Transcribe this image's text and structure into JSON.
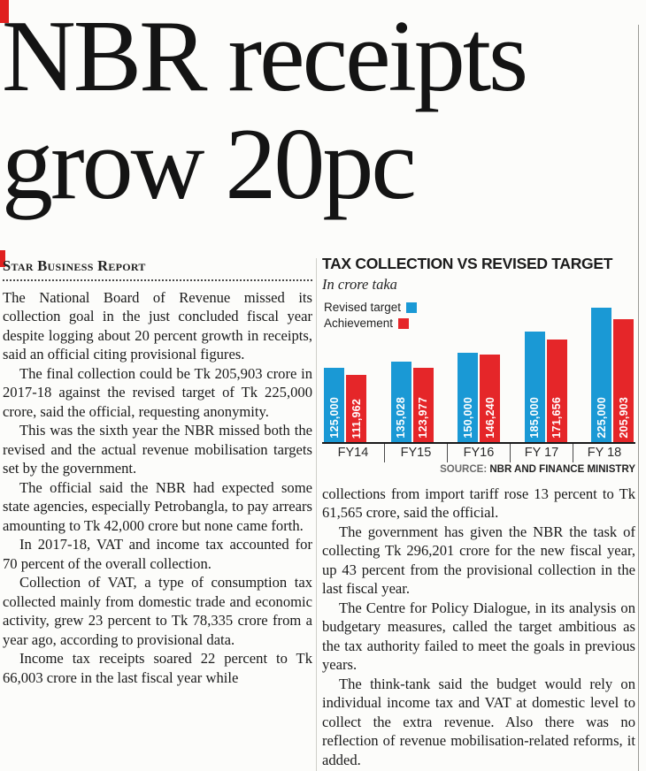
{
  "page": {
    "headline_line1": "NBR receipts",
    "headline_line2": "grow 20pc",
    "byline": "Star Business Report"
  },
  "article": {
    "left_paragraphs": [
      "The National Board of Revenue missed its collection goal in the just concluded fiscal year despite logging about 20 percent growth in receipts, said an official citing provisional figures.",
      "The final collection could be Tk 205,903 crore in 2017-18 against the revised target of Tk 225,000 crore, said the official, requesting anonymity.",
      "This was the sixth year the NBR missed both the revised and the actual revenue mobilisation targets set by the government.",
      "The official said the NBR had expected some state agencies, especially Petrobangla, to pay arrears amounting to Tk 42,000 crore but none came forth.",
      "In 2017-18, VAT and income tax accounted for 70 percent of the overall collection.",
      "Collection of VAT, a type of consumption tax collected mainly from domestic trade and economic activity, grew 23 percent to Tk 78,335 crore from a year ago, according to provisional data.",
      "Income tax receipts soared 22 percent to Tk 66,003 crore in the last fiscal year while"
    ],
    "right_paragraphs": [
      "collections from import tariff rose 13 percent to Tk 61,565 crore, said the official.",
      "The government has given the NBR the task of collecting Tk 296,201 crore for the new fiscal year, up 43 percent from the provisional collection in the last fiscal year.",
      "The Centre for Policy Dialogue, in its analysis on budgetary measures, called the target ambitious as the tax authority failed to meet the goals in previous years.",
      "The think-tank said the budget would rely on individual income tax and VAT at domestic level to collect the extra revenue. Also there was no reflection of revenue mobilisation-related reforms, it added."
    ]
  },
  "chart_data": {
    "type": "bar",
    "title": "TAX COLLECTION VS REVISED TARGET",
    "subtitle": "In crore taka",
    "categories": [
      "FY14",
      "FY15",
      "FY16",
      "FY 17",
      "FY 18"
    ],
    "series": [
      {
        "name": "Revised target",
        "color": "#1a99d5",
        "values": [
          125000,
          135028,
          150000,
          185000,
          225000
        ],
        "labels": [
          "125,000",
          "135,028",
          "150,000",
          "185,000",
          "225,000"
        ]
      },
      {
        "name": "Achievement",
        "color": "#e52629",
        "values": [
          111962,
          123977,
          146240,
          171656,
          205903
        ],
        "labels": [
          "111,962",
          "123,977",
          "146,240",
          "171,656",
          "205,903"
        ]
      }
    ],
    "ylim": [
      0,
      225000
    ],
    "grid": false,
    "legend_position": "top-left",
    "source_label": "SOURCE:",
    "source_value": "NBR AND FINANCE MINISTRY"
  }
}
